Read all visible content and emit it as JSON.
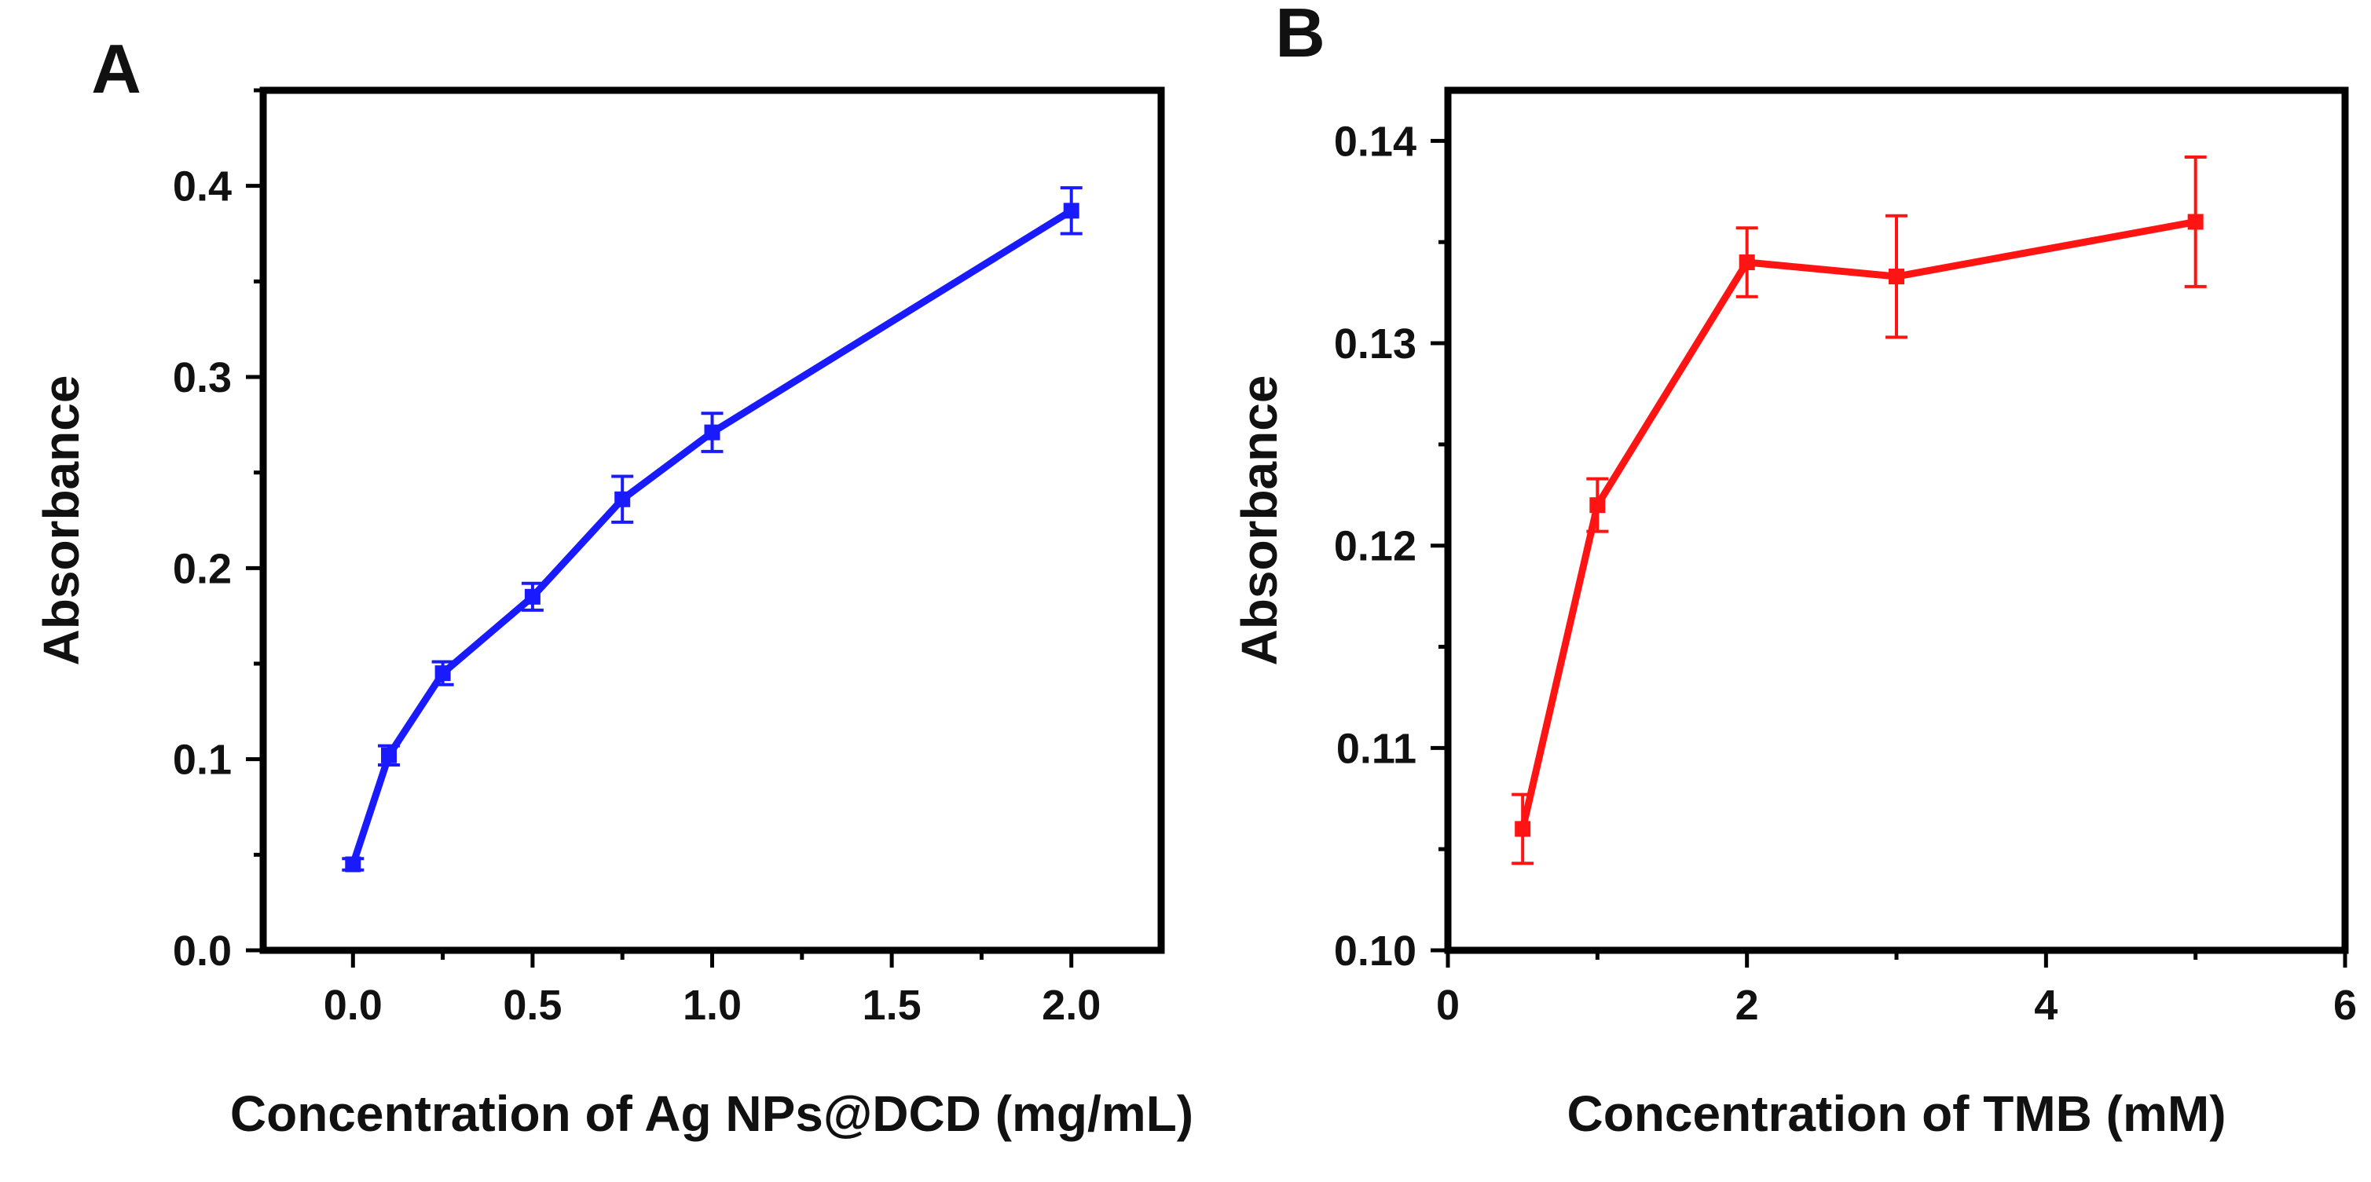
{
  "chart_data": [
    {
      "type": "line",
      "panel_label": "A",
      "xlabel": "Concentration of Ag NPs@DCD (mg/mL)",
      "ylabel": "Absorbance",
      "xlim": [
        -0.25,
        2.25
      ],
      "ylim": [
        0.0,
        0.4
      ],
      "y_axis_max_shown": 0.45,
      "xticks": [
        0.0,
        0.5,
        1.0,
        1.5,
        2.0
      ],
      "xtick_labels": [
        "0.0",
        "0.5",
        "1.0",
        "1.5",
        "2.0"
      ],
      "yticks": [
        0.0,
        0.1,
        0.2,
        0.3,
        0.4
      ],
      "ytick_labels": [
        "0.0",
        "0.1",
        "0.2",
        "0.3",
        "0.4"
      ],
      "grid": false,
      "color": "#1a1aff",
      "series": [
        {
          "x": [
            0.0,
            0.1,
            0.25,
            0.5,
            0.75,
            1.0,
            2.0
          ],
          "y": [
            0.045,
            0.102,
            0.145,
            0.185,
            0.236,
            0.271,
            0.387
          ],
          "error": [
            0.003,
            0.005,
            0.006,
            0.007,
            0.012,
            0.01,
            0.012
          ]
        }
      ]
    },
    {
      "type": "line",
      "panel_label": "B",
      "xlabel": "Concentration of TMB (mM)",
      "ylabel": "Absorbance",
      "xlim": [
        0,
        6
      ],
      "ylim": [
        0.1,
        0.14
      ],
      "y_axis_max_shown": 0.1425,
      "xticks": [
        0,
        2,
        4,
        6
      ],
      "xtick_labels": [
        "0",
        "2",
        "4",
        "6"
      ],
      "yticks": [
        0.1,
        0.11,
        0.12,
        0.13,
        0.14
      ],
      "ytick_labels": [
        "0.10",
        "0.11",
        "0.12",
        "0.13",
        "0.14"
      ],
      "grid": false,
      "color": "#ff1414",
      "series": [
        {
          "x": [
            0.5,
            1.0,
            2.0,
            3.0,
            5.0
          ],
          "y": [
            0.106,
            0.122,
            0.134,
            0.1333,
            0.136
          ],
          "error": [
            0.0017,
            0.0013,
            0.0017,
            0.003,
            0.0032
          ]
        }
      ]
    }
  ]
}
